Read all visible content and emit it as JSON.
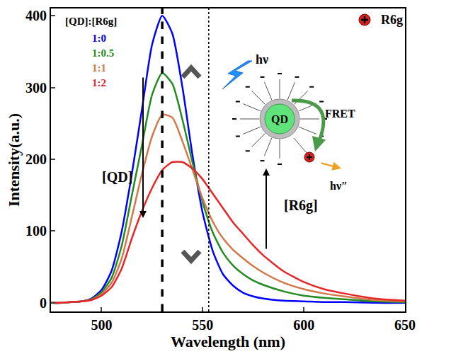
{
  "chart_data": {
    "type": "line",
    "x_label": "Wavelength (nm)",
    "y_label": "Intensity(a.u.)",
    "legend_title": "[QD]:[R6g]",
    "legend": "upper left",
    "x": [
      475,
      480,
      485,
      490,
      495,
      500,
      505,
      510,
      515,
      520,
      525,
      530,
      535,
      540,
      545,
      550,
      555,
      560,
      565,
      570,
      575,
      580,
      590,
      600,
      610,
      620,
      635,
      650
    ],
    "series": [
      {
        "name": "1:0",
        "color": "#0000ff",
        "values": [
          0,
          0,
          1,
          2,
          6,
          18,
          45,
          100,
          180,
          270,
          360,
          400,
          375,
          300,
          205,
          125,
          72,
          40,
          24,
          14,
          9,
          6,
          3,
          2,
          1,
          1,
          0,
          0
        ]
      },
      {
        "name": "1:0.5",
        "color": "#228b22",
        "values": [
          0,
          0,
          1,
          2,
          5,
          15,
          35,
          80,
          150,
          220,
          290,
          320,
          305,
          255,
          195,
          140,
          98,
          70,
          52,
          40,
          31,
          25,
          16,
          10,
          7,
          5,
          2,
          1
        ]
      },
      {
        "name": "1:1",
        "color": "#d2784a",
        "values": [
          0,
          0,
          1,
          2,
          4,
          12,
          28,
          62,
          120,
          180,
          232,
          262,
          258,
          225,
          185,
          145,
          113,
          90,
          74,
          62,
          51,
          42,
          28,
          19,
          13,
          9,
          4,
          2
        ]
      },
      {
        "name": "1:2",
        "color": "#e8262a",
        "values": [
          0,
          0,
          1,
          2,
          4,
          10,
          22,
          48,
          90,
          128,
          160,
          185,
          196,
          196,
          187,
          172,
          152,
          132,
          112,
          96,
          80,
          66,
          44,
          29,
          19,
          13,
          6,
          3
        ]
      }
    ],
    "xlim": [
      475,
      650
    ],
    "xticks": [
      500,
      550,
      600,
      650
    ],
    "ylim": [
      -12,
      410
    ],
    "yticks": [
      0,
      100,
      200,
      300,
      400
    ],
    "grid": false,
    "peak_lines": [
      {
        "x": 530,
        "line_style": "dashed"
      },
      {
        "x": 553,
        "line_style": "dotted"
      }
    ],
    "annotations": [
      {
        "text": "[QD]"
      },
      {
        "text": "[R6g]"
      },
      {
        "text": "FRET"
      },
      {
        "text": "QD"
      },
      {
        "text": "hν"
      },
      {
        "text": "hν″"
      },
      {
        "text": "R6g"
      }
    ]
  }
}
